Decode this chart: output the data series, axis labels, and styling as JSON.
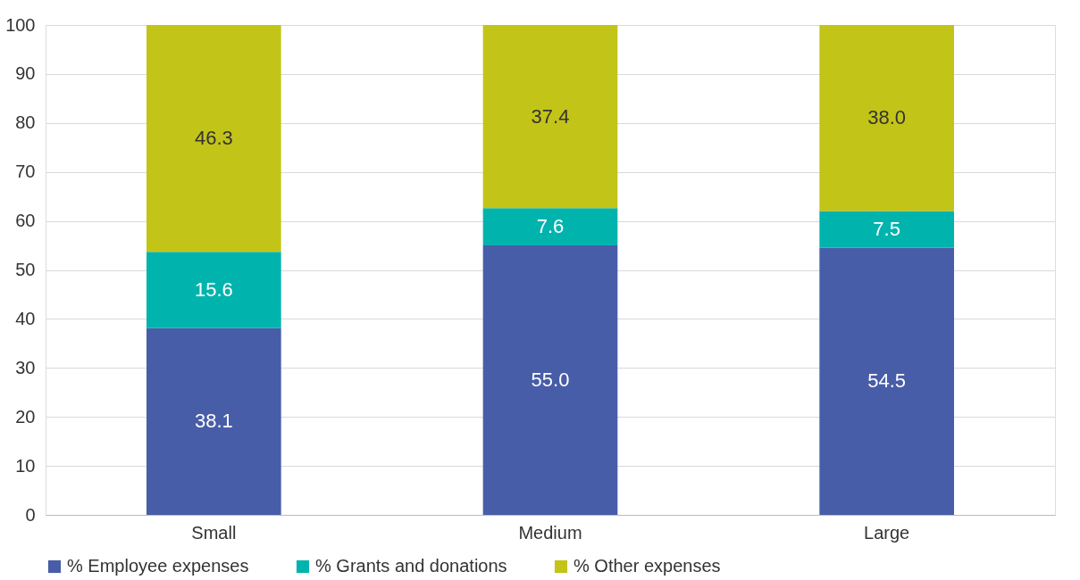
{
  "chart_data": {
    "type": "bar",
    "stacked": true,
    "categories": [
      "Small",
      "Medium",
      "Large"
    ],
    "series": [
      {
        "name": "% Employee expenses",
        "color": "#485da8",
        "values": [
          38.1,
          55.0,
          54.5
        ],
        "value_labels": [
          "38.1",
          "55.0",
          "54.5"
        ]
      },
      {
        "name": "% Grants and donations",
        "color": "#00b4ad",
        "values": [
          15.6,
          7.6,
          7.5
        ],
        "value_labels": [
          "15.6",
          "7.6",
          "7.5"
        ]
      },
      {
        "name": "% Other expenses",
        "color": "#c3c418",
        "values": [
          46.3,
          37.4,
          38.0
        ],
        "value_labels": [
          "46.3",
          "37.4",
          "38.0"
        ]
      }
    ],
    "ylim": [
      0,
      100
    ],
    "yticks": [
      0,
      10,
      20,
      30,
      40,
      50,
      60,
      70,
      80,
      90,
      100
    ],
    "grid": "y",
    "legend": "bottom"
  }
}
